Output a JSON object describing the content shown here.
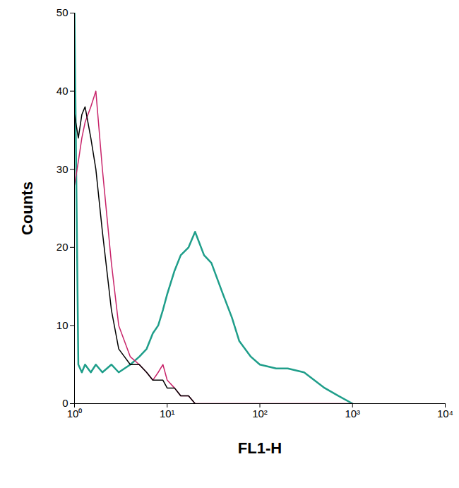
{
  "chart_data": {
    "type": "line",
    "x_label": "FL1-H",
    "y_label": "Counts",
    "log": "x",
    "grid": false,
    "xlim": [
      1,
      10000
    ],
    "xticks": [
      {
        "value": 1,
        "label": "10⁰"
      },
      {
        "value": 10,
        "label": "10¹"
      },
      {
        "value": 100,
        "label": "10²"
      },
      {
        "value": 1000,
        "label": "10³"
      },
      {
        "value": 10000,
        "label": "10⁴"
      }
    ],
    "ylim": [
      0,
      50
    ],
    "yticks": [
      0,
      10,
      20,
      30,
      40,
      50
    ],
    "x": [
      1,
      1.1,
      1.2,
      1.3,
      1.5,
      1.7,
      2,
      2.5,
      3,
      4,
      5,
      6,
      7,
      8,
      9,
      10,
      12,
      14,
      17,
      20,
      25,
      30,
      40,
      50,
      60,
      80,
      100,
      150,
      200,
      300,
      500,
      700,
      1000
    ],
    "series": [
      {
        "color": "#1f9e8a",
        "values": [
          50,
          5,
          4,
          5,
          4,
          5,
          4,
          5,
          4,
          5,
          6,
          7,
          9,
          10,
          12,
          14,
          17,
          19,
          20,
          22,
          19,
          18,
          14,
          11,
          8,
          6,
          5,
          4.5,
          4.5,
          4,
          2,
          1,
          0
        ]
      },
      {
        "color": "#c8246a",
        "values": [
          28,
          31,
          34,
          36,
          38,
          40,
          30,
          18,
          10,
          6,
          5,
          4,
          3,
          4,
          5,
          3,
          2,
          1,
          1,
          0,
          0,
          0,
          0,
          0,
          0,
          0,
          0,
          0,
          0,
          0,
          0,
          0,
          0
        ]
      },
      {
        "color": "#000000",
        "values": [
          37,
          34,
          37,
          38,
          34,
          30,
          22,
          12,
          7,
          5,
          5,
          4,
          3,
          3,
          3,
          2,
          2,
          1,
          1,
          0,
          null,
          null,
          null,
          null,
          null,
          null,
          null,
          null,
          null,
          null,
          null,
          null,
          null
        ]
      }
    ]
  }
}
